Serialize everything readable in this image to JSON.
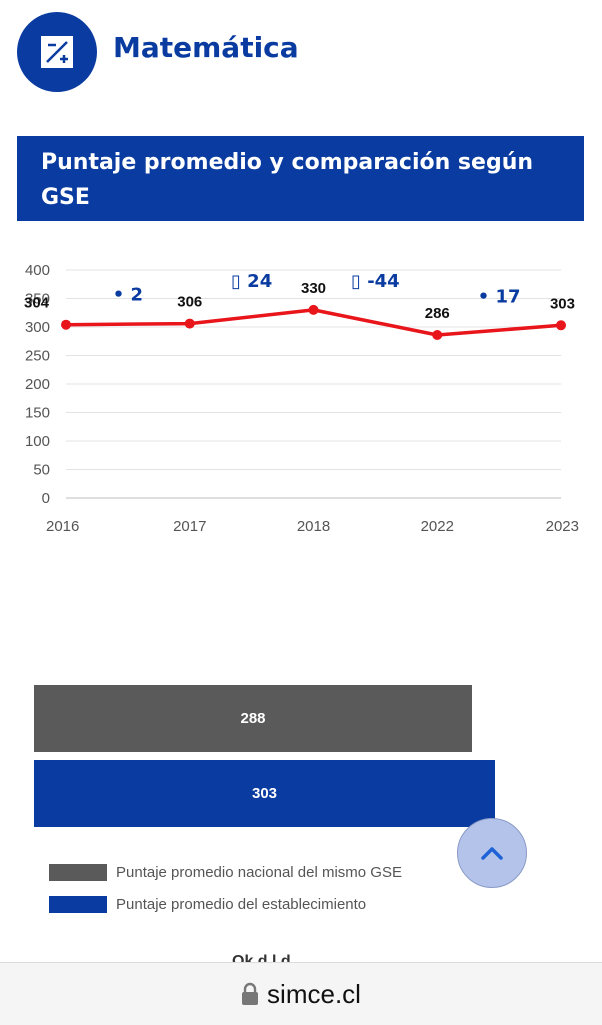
{
  "header": {
    "subject": "Matemática",
    "logo_icon": "square-root-icon"
  },
  "section": {
    "title_line1": "Puntaje promedio y comparación según",
    "title_line2": "GSE"
  },
  "chart_data": [
    {
      "type": "line",
      "categories": [
        "2016",
        "2017",
        "2018",
        "2022",
        "2023"
      ],
      "series": [
        {
          "values": [
            304,
            306,
            330,
            286,
            303
          ],
          "color": "#e8151b"
        }
      ],
      "data_labels": [
        "304",
        "306",
        "330",
        "286",
        "303"
      ],
      "yticks": [
        "0",
        "50",
        "100",
        "150",
        "200",
        "250",
        "300",
        "350",
        "400"
      ],
      "ylim": [
        0,
        400
      ],
      "grid": true,
      "changes": [
        {
          "marker": "•",
          "value": "2"
        },
        {
          "marker": "▯",
          "value": "24"
        },
        {
          "marker": "▯",
          "value": "-44"
        },
        {
          "marker": "•",
          "value": "17"
        }
      ],
      "change_color": "#0a3ba0"
    },
    {
      "type": "bar",
      "orientation": "horizontal",
      "series": [
        {
          "name": "Puntaje promedio nacional del mismo GSE",
          "values": [
            288
          ],
          "color": "#5a5a5a"
        },
        {
          "name": "Puntaje promedio del establecimiento",
          "values": [
            303
          ],
          "color": "#0a3ba0"
        }
      ],
      "data_labels": [
        "288",
        "303"
      ],
      "legend": "bottom-left"
    }
  ],
  "page": {
    "cutoff_text": "Ok d l d",
    "url": "simce.cl",
    "lock_icon": "lock-icon",
    "scroll_icon": "chevron-up-icon"
  }
}
